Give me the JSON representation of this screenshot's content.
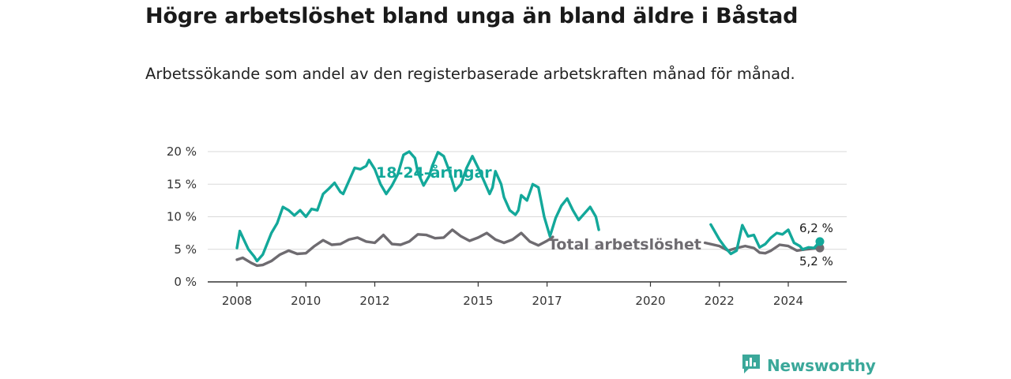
{
  "title": "Högre arbetslöshet bland unga än bland äldre i Båstad",
  "subtitle": "Arbetssökande som andel av den registerbaserade arbetskraften månad för månad.",
  "brand": {
    "name": "Newsworthy",
    "icon": "bar-chart-icon",
    "color": "#3ba89a"
  },
  "chart_data": {
    "type": "line",
    "title": "Högre arbetslöshet bland unga än bland äldre i Båstad",
    "subtitle": "Arbetssökande som andel av den registerbaserade arbetskraften månad för månad.",
    "xlabel": "",
    "ylabel": "",
    "x_range": [
      "2008-01",
      "2024-12"
    ],
    "ylim": [
      0,
      20
    ],
    "x_ticks": [
      "2008",
      "2010",
      "2012",
      "2015",
      "2017",
      "2020",
      "2022",
      "2024"
    ],
    "y_ticks": [
      "0 %",
      "5 %",
      "10 %",
      "15 %",
      "20 %"
    ],
    "grid": "horizontal",
    "legend": "inline labels",
    "series": [
      {
        "name": "18-24-åringar",
        "color": "#13a89a",
        "end_label": "6,2 %",
        "points": [
          [
            "2008-01",
            5.2
          ],
          [
            "2008-02",
            7.8
          ],
          [
            "2008-05",
            5.0
          ],
          [
            "2008-07",
            3.9
          ],
          [
            "2008-08",
            3.2
          ],
          [
            "2008-10",
            4.2
          ],
          [
            "2009-01",
            7.5
          ],
          [
            "2009-03",
            9.0
          ],
          [
            "2009-05",
            11.5
          ],
          [
            "2009-07",
            11.0
          ],
          [
            "2009-09",
            10.2
          ],
          [
            "2009-11",
            11.0
          ],
          [
            "2010-01",
            10.0
          ],
          [
            "2010-03",
            11.2
          ],
          [
            "2010-05",
            11.0
          ],
          [
            "2010-07",
            13.5
          ],
          [
            "2010-09",
            14.3
          ],
          [
            "2010-11",
            15.2
          ],
          [
            "2011-01",
            13.8
          ],
          [
            "2011-02",
            13.5
          ],
          [
            "2011-04",
            15.5
          ],
          [
            "2011-06",
            17.5
          ],
          [
            "2011-08",
            17.3
          ],
          [
            "2011-10",
            17.8
          ],
          [
            "2011-11",
            18.7
          ],
          [
            "2012-01",
            17.3
          ],
          [
            "2012-03",
            15.0
          ],
          [
            "2012-05",
            13.5
          ],
          [
            "2012-07",
            14.8
          ],
          [
            "2012-09",
            16.5
          ],
          [
            "2012-11",
            19.5
          ],
          [
            "2013-01",
            20.0
          ],
          [
            "2013-03",
            19.0
          ],
          [
            "2013-04",
            16.8
          ],
          [
            "2013-06",
            14.8
          ],
          [
            "2013-08",
            16.3
          ],
          [
            "2013-09",
            17.8
          ],
          [
            "2013-11",
            19.9
          ],
          [
            "2014-01",
            19.3
          ],
          [
            "2014-03",
            17.0
          ],
          [
            "2014-05",
            14.0
          ],
          [
            "2014-07",
            15.0
          ],
          [
            "2014-09",
            17.5
          ],
          [
            "2014-11",
            19.3
          ],
          [
            "2015-01",
            17.5
          ],
          [
            "2015-03",
            15.5
          ],
          [
            "2015-05",
            13.5
          ],
          [
            "2015-06",
            14.5
          ],
          [
            "2015-07",
            17.0
          ],
          [
            "2015-09",
            15.0
          ],
          [
            "2015-10",
            13.0
          ],
          [
            "2015-12",
            11.0
          ],
          [
            "2016-02",
            10.3
          ],
          [
            "2016-03",
            11.0
          ],
          [
            "2016-04",
            13.3
          ],
          [
            "2016-06",
            12.5
          ],
          [
            "2016-08",
            15.0
          ],
          [
            "2016-10",
            14.5
          ],
          [
            "2016-12",
            10.0
          ],
          [
            "2017-02",
            7.0
          ],
          [
            "2017-04",
            9.8
          ],
          [
            "2017-06",
            11.7
          ],
          [
            "2017-08",
            12.8
          ],
          [
            "2017-10",
            11.0
          ],
          [
            "2017-12",
            9.5
          ],
          [
            "2018-02",
            10.5
          ],
          [
            "2018-04",
            11.5
          ],
          [
            "2018-06",
            10.0
          ],
          [
            "2018-07",
            8.0
          ]
        ],
        "points_after_label": [
          [
            "2021-10",
            8.8
          ],
          [
            "2022-01",
            6.5
          ],
          [
            "2022-03",
            5.3
          ],
          [
            "2022-05",
            4.3
          ],
          [
            "2022-07",
            4.8
          ],
          [
            "2022-09",
            8.7
          ],
          [
            "2022-11",
            7.0
          ],
          [
            "2023-01",
            7.2
          ],
          [
            "2023-03",
            5.3
          ],
          [
            "2023-05",
            5.8
          ],
          [
            "2023-07",
            6.8
          ],
          [
            "2023-09",
            7.5
          ],
          [
            "2023-11",
            7.3
          ],
          [
            "2024-01",
            8.0
          ],
          [
            "2024-03",
            6.0
          ],
          [
            "2024-05",
            5.5
          ],
          [
            "2024-06",
            5.0
          ],
          [
            "2024-08",
            5.3
          ],
          [
            "2024-10",
            5.2
          ],
          [
            "2024-12",
            6.2
          ]
        ]
      },
      {
        "name": "Total arbetslöshet",
        "color": "#6e6b70",
        "end_label": "5,2 %",
        "points": [
          [
            "2008-01",
            3.4
          ],
          [
            "2008-03",
            3.7
          ],
          [
            "2008-06",
            2.9
          ],
          [
            "2008-08",
            2.5
          ],
          [
            "2008-10",
            2.6
          ],
          [
            "2009-01",
            3.2
          ],
          [
            "2009-04",
            4.2
          ],
          [
            "2009-07",
            4.8
          ],
          [
            "2009-10",
            4.3
          ],
          [
            "2010-01",
            4.4
          ],
          [
            "2010-04",
            5.5
          ],
          [
            "2010-07",
            6.4
          ],
          [
            "2010-10",
            5.7
          ],
          [
            "2011-01",
            5.8
          ],
          [
            "2011-04",
            6.5
          ],
          [
            "2011-07",
            6.8
          ],
          [
            "2011-10",
            6.2
          ],
          [
            "2012-01",
            6.0
          ],
          [
            "2012-04",
            7.2
          ],
          [
            "2012-07",
            5.8
          ],
          [
            "2012-10",
            5.7
          ],
          [
            "2013-01",
            6.2
          ],
          [
            "2013-04",
            7.3
          ],
          [
            "2013-07",
            7.2
          ],
          [
            "2013-10",
            6.7
          ],
          [
            "2014-01",
            6.8
          ],
          [
            "2014-04",
            8.0
          ],
          [
            "2014-07",
            7.0
          ],
          [
            "2014-10",
            6.3
          ],
          [
            "2015-01",
            6.8
          ],
          [
            "2015-04",
            7.5
          ],
          [
            "2015-07",
            6.5
          ],
          [
            "2015-10",
            6.0
          ],
          [
            "2016-01",
            6.5
          ],
          [
            "2016-04",
            7.5
          ],
          [
            "2016-07",
            6.2
          ],
          [
            "2016-10",
            5.6
          ],
          [
            "2017-01",
            6.3
          ],
          [
            "2017-03",
            6.9
          ]
        ],
        "points_after_label": [
          [
            "2021-08",
            6.0
          ],
          [
            "2022-01",
            5.5
          ],
          [
            "2022-04",
            4.8
          ],
          [
            "2022-07",
            5.2
          ],
          [
            "2022-10",
            5.5
          ],
          [
            "2023-01",
            5.2
          ],
          [
            "2023-03",
            4.5
          ],
          [
            "2023-05",
            4.4
          ],
          [
            "2023-07",
            4.8
          ],
          [
            "2023-10",
            5.7
          ],
          [
            "2024-01",
            5.5
          ],
          [
            "2024-04",
            4.8
          ],
          [
            "2024-07",
            5.0
          ],
          [
            "2024-12",
            5.2
          ]
        ]
      }
    ]
  }
}
